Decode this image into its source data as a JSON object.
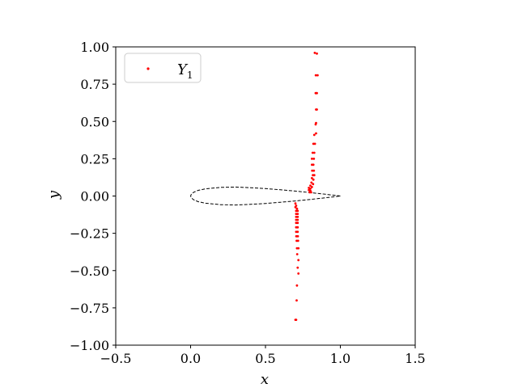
{
  "chart_data": {
    "type": "scatter",
    "xlabel": "x",
    "ylabel": "y",
    "xlim": [
      -0.5,
      1.5
    ],
    "ylim": [
      -1.0,
      1.0
    ],
    "xticks": [
      -0.5,
      0.0,
      0.5,
      1.0,
      1.5
    ],
    "yticks": [
      -1.0,
      -0.75,
      -0.5,
      -0.25,
      0.0,
      0.25,
      0.5,
      0.75,
      1.0
    ],
    "xtick_labels": [
      "−0.5",
      "0.0",
      "0.5",
      "1.0",
      "1.5"
    ],
    "ytick_labels": [
      "−1.00",
      "−0.75",
      "−0.50",
      "−0.25",
      "0.00",
      "0.25",
      "0.50",
      "0.75",
      "1.00"
    ],
    "grid": false,
    "legend_position": "top-left",
    "legend": {
      "symbol": "Y",
      "subscript": "1"
    },
    "colors": {
      "series": "#ff0000",
      "outline": "#000000"
    },
    "series": [
      {
        "name": "Y1",
        "points": [
          [
            0.829,
            0.96
          ],
          [
            0.843,
            0.955
          ],
          [
            0.848,
            0.81
          ],
          [
            0.836,
            0.81
          ],
          [
            0.843,
            0.69
          ],
          [
            0.835,
            0.69
          ],
          [
            0.843,
            0.58
          ],
          [
            0.838,
            0.58
          ],
          [
            0.838,
            0.49
          ],
          [
            0.835,
            0.48
          ],
          [
            0.826,
            0.41
          ],
          [
            0.838,
            0.42
          ],
          [
            0.83,
            0.35
          ],
          [
            0.82,
            0.35
          ],
          [
            0.826,
            0.29
          ],
          [
            0.815,
            0.29
          ],
          [
            0.823,
            0.25
          ],
          [
            0.81,
            0.25
          ],
          [
            0.82,
            0.21
          ],
          [
            0.81,
            0.21
          ],
          [
            0.823,
            0.17
          ],
          [
            0.812,
            0.17
          ],
          [
            0.826,
            0.14
          ],
          [
            0.817,
            0.14
          ],
          [
            0.81,
            0.12
          ],
          [
            0.82,
            0.11
          ],
          [
            0.807,
            0.09
          ],
          [
            0.818,
            0.08
          ],
          [
            0.8,
            0.07
          ],
          [
            0.81,
            0.06
          ],
          [
            0.79,
            0.055
          ],
          [
            0.8,
            0.05
          ],
          [
            0.79,
            0.04
          ],
          [
            0.8,
            0.035
          ],
          [
            0.795,
            0.025
          ],
          [
            0.805,
            0.025
          ],
          [
            0.7,
            -0.05
          ],
          [
            0.705,
            -0.065
          ],
          [
            0.7,
            -0.075
          ],
          [
            0.71,
            -0.085
          ],
          [
            0.705,
            -0.1
          ],
          [
            0.715,
            -0.1
          ],
          [
            0.705,
            -0.12
          ],
          [
            0.715,
            -0.12
          ],
          [
            0.705,
            -0.14
          ],
          [
            0.715,
            -0.14
          ],
          [
            0.705,
            -0.16
          ],
          [
            0.715,
            -0.16
          ],
          [
            0.705,
            -0.18
          ],
          [
            0.715,
            -0.18
          ],
          [
            0.705,
            -0.21
          ],
          [
            0.715,
            -0.21
          ],
          [
            0.705,
            -0.24
          ],
          [
            0.715,
            -0.24
          ],
          [
            0.706,
            -0.27
          ],
          [
            0.716,
            -0.27
          ],
          [
            0.708,
            -0.3
          ],
          [
            0.718,
            -0.3
          ],
          [
            0.71,
            -0.35
          ],
          [
            0.72,
            -0.35
          ],
          [
            0.712,
            -0.39
          ],
          [
            0.72,
            -0.43
          ],
          [
            0.715,
            -0.48
          ],
          [
            0.72,
            -0.52
          ],
          [
            0.71,
            -0.6
          ],
          [
            0.708,
            -0.7
          ],
          [
            0.705,
            -0.83
          ],
          [
            0.7,
            -0.83
          ]
        ]
      }
    ],
    "outline": {
      "style": "dashed",
      "points": [
        [
          1.0,
          0.0
        ],
        [
          0.95,
          0.006
        ],
        [
          0.9,
          0.012
        ],
        [
          0.8,
          0.023
        ],
        [
          0.7,
          0.033
        ],
        [
          0.6,
          0.042
        ],
        [
          0.5,
          0.05
        ],
        [
          0.4,
          0.056
        ],
        [
          0.3,
          0.06
        ],
        [
          0.2,
          0.058
        ],
        [
          0.1,
          0.048
        ],
        [
          0.05,
          0.038
        ],
        [
          0.02,
          0.025
        ],
        [
          0.005,
          0.012
        ],
        [
          0.0,
          0.0
        ],
        [
          0.005,
          -0.012
        ],
        [
          0.02,
          -0.025
        ],
        [
          0.05,
          -0.038
        ],
        [
          0.1,
          -0.048
        ],
        [
          0.2,
          -0.058
        ],
        [
          0.3,
          -0.06
        ],
        [
          0.4,
          -0.056
        ],
        [
          0.5,
          -0.05
        ],
        [
          0.6,
          -0.042
        ],
        [
          0.7,
          -0.033
        ],
        [
          0.8,
          -0.023
        ],
        [
          0.9,
          -0.012
        ],
        [
          0.95,
          -0.006
        ],
        [
          1.0,
          0.0
        ]
      ]
    }
  }
}
